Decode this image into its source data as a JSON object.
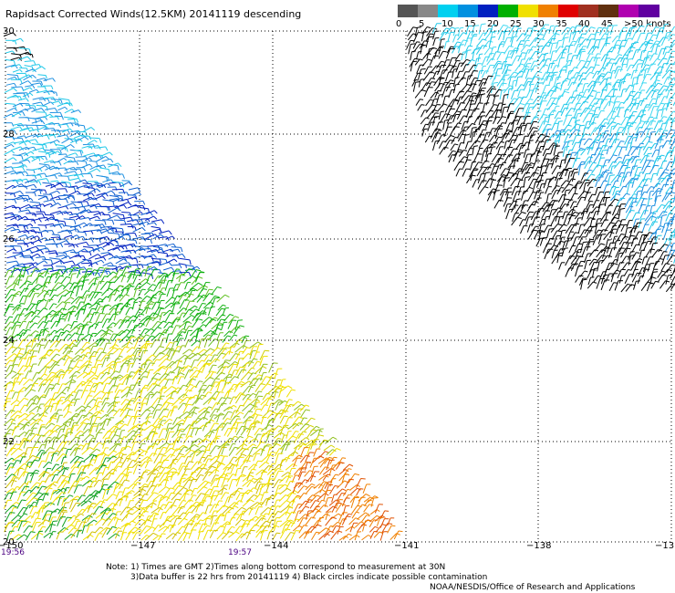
{
  "title": "Rapidsact Corrected Winds(12.5KM) 20141119 descending",
  "colorbar": {
    "labels": [
      "0",
      "5",
      "10",
      "15",
      "20",
      "25",
      "30",
      "35",
      "40",
      "45",
      ">50 knots"
    ],
    "colors": [
      "#555555",
      "#888888",
      "#00d0f0",
      "#0090e0",
      "#0020c0",
      "#00b000",
      "#f0e000",
      "#f08000",
      "#e00000",
      "#a03020",
      "#603010",
      "#b000b0",
      "#6000a0"
    ]
  },
  "map": {
    "lat_labels": [
      "30",
      "28",
      "26",
      "24",
      "22",
      "20"
    ],
    "lon_labels": [
      "-150",
      "-147",
      "-144",
      "-141",
      "-138",
      "-13"
    ]
  },
  "times": {
    "left": "19:56",
    "mid": "19:57"
  },
  "notes": {
    "line1": "Note: 1) Times are GMT 2)Times along bottom correspond to measurement at 30N",
    "line2": "3)Data buffer is 22 hrs from 20141119 4) Black circles indicate possible contamination",
    "line3": "NOAA/NESDIS/Office of Research and Applications"
  }
}
